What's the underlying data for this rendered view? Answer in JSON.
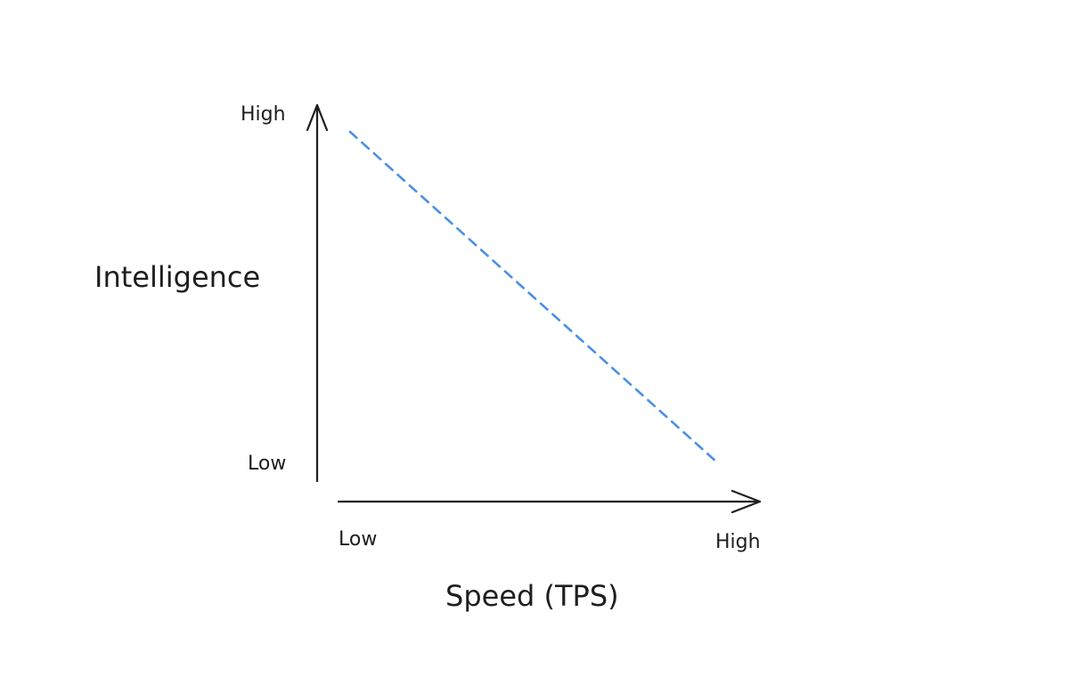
{
  "diagram": {
    "y_axis": {
      "title": "Intelligence",
      "high_label": "High",
      "low_label": "Low"
    },
    "x_axis": {
      "title": "Speed (TPS)",
      "low_label": "Low",
      "high_label": "High"
    },
    "tradeoff_line": {
      "style": "dashed",
      "direction": "descending",
      "color": "#4a90e2"
    },
    "colors": {
      "axis": "#1e1e1e",
      "text": "#1e1e1e",
      "background": "#ffffff"
    }
  }
}
